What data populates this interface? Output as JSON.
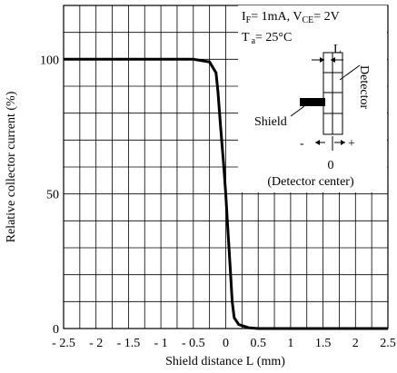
{
  "chart_data": {
    "type": "line",
    "xlabel": "Shield distance L (mm)",
    "ylabel": "Relative collector current (%)",
    "xlim": [
      -2.5,
      2.5
    ],
    "ylim": [
      0,
      120
    ],
    "grid": true,
    "x_tick_labels": [
      "- 2.5",
      "- 2",
      "- 1.5",
      "- 1",
      "- 0.5",
      "0",
      "0.5",
      "1",
      "1.5",
      "2",
      "2.5"
    ],
    "y_tick_labels": [
      {
        "value": 0,
        "label": "0"
      },
      {
        "value": 50,
        "label": "50"
      },
      {
        "value": 100,
        "label": "100"
      }
    ],
    "series": [
      {
        "x": [
          -2.5,
          -1.0,
          -0.5,
          -0.25,
          -0.15,
          -0.12,
          -0.08,
          -0.03,
          0.0,
          0.03,
          0.07,
          0.1,
          0.13,
          0.2,
          0.35,
          0.5,
          1.0,
          2.0,
          2.5
        ],
        "y": [
          100,
          100,
          100,
          99,
          95,
          88,
          75,
          60,
          50,
          38,
          22,
          10,
          4,
          1.5,
          0.3,
          0,
          0,
          0,
          0
        ]
      }
    ],
    "conditions": {
      "line1_IF": "I",
      "line1_IF_sub": "F",
      "line1_IF_val": "= 1mA, V",
      "line1_VCE_sub": "CE",
      "line1_VCE_val": "= 2V",
      "line2_T": "T",
      "line2_T_sub": "a",
      "line2_T_val": "= 25°C"
    },
    "inset": {
      "L_label": "L",
      "detector_label": "Detector",
      "shield_label": "Shield",
      "minus_label": "-",
      "plus_label": "+",
      "zero_label": "0",
      "center_label": "(Detector center)"
    }
  }
}
